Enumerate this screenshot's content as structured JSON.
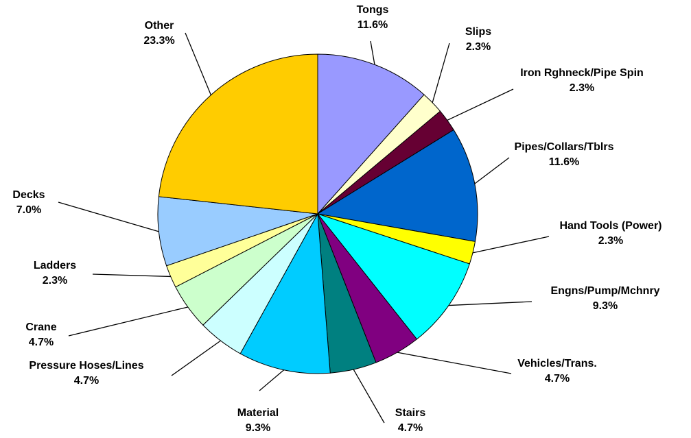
{
  "chart_data": {
    "type": "pie",
    "categories": [
      "Tongs",
      "Slips",
      "Iron Rghneck/Pipe Spin",
      "Pipes/Collars/Tblrs",
      "Hand Tools (Power)",
      "Engns/Pump/Mchnry",
      "Vehicles/Trans.",
      "Stairs",
      "Material",
      "Pressure Hoses/Lines",
      "Crane",
      "Ladders",
      "Decks",
      "Other"
    ],
    "values": [
      11.6,
      2.3,
      2.3,
      11.6,
      2.3,
      9.3,
      4.7,
      4.7,
      9.3,
      4.7,
      4.7,
      2.3,
      7.0,
      23.3
    ],
    "value_labels": [
      "11.6%",
      "2.3%",
      "2.3%",
      "11.6%",
      "2.3%",
      "9.3%",
      "4.7%",
      "4.7%",
      "9.3%",
      "4.7%",
      "4.7%",
      "2.3%",
      "7.0%",
      "23.3%"
    ],
    "colors": [
      "#9999ff",
      "#ffffcc",
      "#660033",
      "#0066cc",
      "#ffff00",
      "#00ffff",
      "#800080",
      "#008080",
      "#00ccff",
      "#ccffff",
      "#ccffcc",
      "#ffff99",
      "#99ccff",
      "#ffcc00"
    ]
  }
}
